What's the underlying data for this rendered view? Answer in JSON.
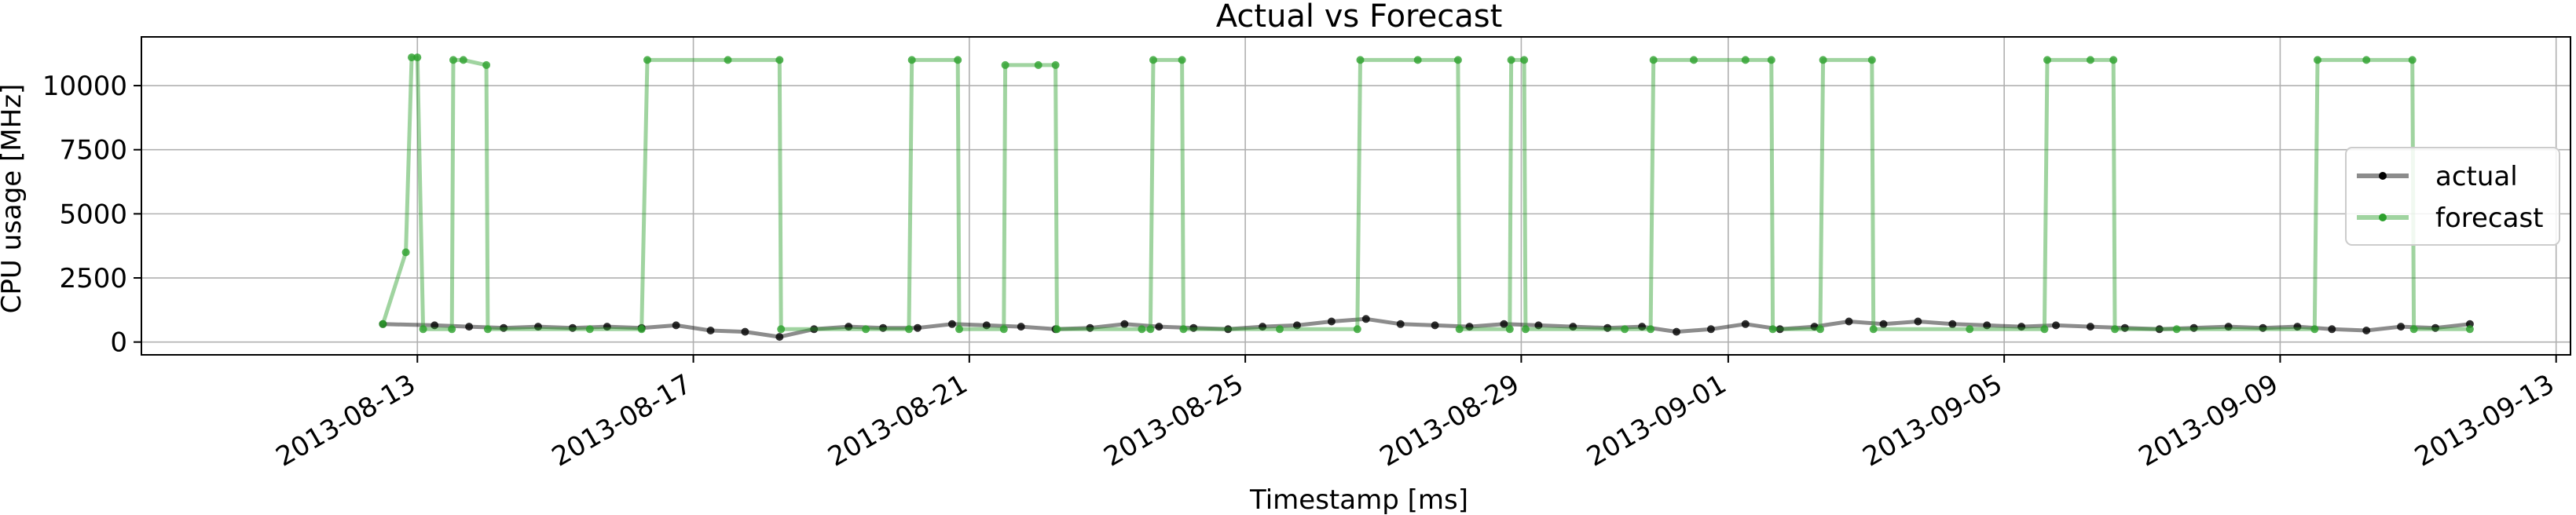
{
  "chart_data": {
    "type": "line",
    "title": "Actual vs Forecast",
    "xlabel": "Timestamp [ms]",
    "ylabel": "CPU usage [MHz]",
    "xlim": [
      "2013-08-09T00:00",
      "2013-09-13T05:00"
    ],
    "ylim": [
      -500,
      11900
    ],
    "x_ticks": [
      "2013-08-13",
      "2013-08-17",
      "2013-08-21",
      "2013-08-25",
      "2013-08-29",
      "2013-09-01",
      "2013-09-05",
      "2013-09-09",
      "2013-09-13"
    ],
    "y_ticks": [
      0,
      2500,
      5000,
      7500,
      10000
    ],
    "grid": true,
    "legend_position": "right",
    "series": [
      {
        "name": "actual",
        "color": "#000000",
        "points": [
          [
            "2013-08-12T12:00",
            700
          ],
          [
            "2013-08-13T06:00",
            650
          ],
          [
            "2013-08-13T18:00",
            600
          ],
          [
            "2013-08-14T06:00",
            550
          ],
          [
            "2013-08-14T18:00",
            600
          ],
          [
            "2013-08-15T06:00",
            550
          ],
          [
            "2013-08-15T18:00",
            600
          ],
          [
            "2013-08-16T06:00",
            550
          ],
          [
            "2013-08-16T18:00",
            650
          ],
          [
            "2013-08-17T06:00",
            450
          ],
          [
            "2013-08-17T18:00",
            400
          ],
          [
            "2013-08-18T06:00",
            200
          ],
          [
            "2013-08-18T18:00",
            500
          ],
          [
            "2013-08-19T06:00",
            600
          ],
          [
            "2013-08-19T18:00",
            550
          ],
          [
            "2013-08-20T06:00",
            550
          ],
          [
            "2013-08-20T18:00",
            700
          ],
          [
            "2013-08-21T06:00",
            650
          ],
          [
            "2013-08-21T18:00",
            600
          ],
          [
            "2013-08-22T06:00",
            500
          ],
          [
            "2013-08-22T18:00",
            550
          ],
          [
            "2013-08-23T06:00",
            700
          ],
          [
            "2013-08-23T18:00",
            600
          ],
          [
            "2013-08-24T06:00",
            550
          ],
          [
            "2013-08-24T18:00",
            500
          ],
          [
            "2013-08-25T06:00",
            600
          ],
          [
            "2013-08-25T18:00",
            650
          ],
          [
            "2013-08-26T06:00",
            800
          ],
          [
            "2013-08-26T18:00",
            900
          ],
          [
            "2013-08-27T06:00",
            700
          ],
          [
            "2013-08-27T18:00",
            650
          ],
          [
            "2013-08-28T06:00",
            600
          ],
          [
            "2013-08-28T18:00",
            700
          ],
          [
            "2013-08-29T06:00",
            650
          ],
          [
            "2013-08-29T18:00",
            600
          ],
          [
            "2013-08-30T06:00",
            550
          ],
          [
            "2013-08-30T18:00",
            600
          ],
          [
            "2013-08-31T06:00",
            400
          ],
          [
            "2013-08-31T18:00",
            500
          ],
          [
            "2013-09-01T06:00",
            700
          ],
          [
            "2013-09-01T18:00",
            500
          ],
          [
            "2013-09-02T06:00",
            600
          ],
          [
            "2013-09-02T18:00",
            800
          ],
          [
            "2013-09-03T06:00",
            700
          ],
          [
            "2013-09-03T18:00",
            800
          ],
          [
            "2013-09-04T06:00",
            700
          ],
          [
            "2013-09-04T18:00",
            650
          ],
          [
            "2013-09-05T06:00",
            600
          ],
          [
            "2013-09-05T18:00",
            650
          ],
          [
            "2013-09-06T06:00",
            600
          ],
          [
            "2013-09-06T18:00",
            550
          ],
          [
            "2013-09-07T06:00",
            500
          ],
          [
            "2013-09-07T18:00",
            550
          ],
          [
            "2013-09-08T06:00",
            600
          ],
          [
            "2013-09-08T18:00",
            550
          ],
          [
            "2013-09-09T06:00",
            600
          ],
          [
            "2013-09-09T18:00",
            500
          ],
          [
            "2013-09-10T06:00",
            450
          ],
          [
            "2013-09-10T18:00",
            600
          ],
          [
            "2013-09-11T06:00",
            550
          ],
          [
            "2013-09-11T18:00",
            700
          ]
        ]
      },
      {
        "name": "forecast",
        "color": "#2ca02c",
        "points": [
          [
            "2013-08-12T12:00",
            700
          ],
          [
            "2013-08-12T20:00",
            3500
          ],
          [
            "2013-08-12T22:00",
            11100
          ],
          [
            "2013-08-13T00:00",
            11100
          ],
          [
            "2013-08-13T02:00",
            500
          ],
          [
            "2013-08-13T12:00",
            500
          ],
          [
            "2013-08-13T12:30",
            11000
          ],
          [
            "2013-08-13T16:00",
            11000
          ],
          [
            "2013-08-14T00:00",
            10800
          ],
          [
            "2013-08-14T00:30",
            500
          ],
          [
            "2013-08-15T12:00",
            500
          ],
          [
            "2013-08-16T06:00",
            500
          ],
          [
            "2013-08-16T08:00",
            11000
          ],
          [
            "2013-08-17T12:00",
            11000
          ],
          [
            "2013-08-18T06:00",
            11000
          ],
          [
            "2013-08-18T06:30",
            500
          ],
          [
            "2013-08-19T12:00",
            500
          ],
          [
            "2013-08-20T03:00",
            500
          ],
          [
            "2013-08-20T04:00",
            11000
          ],
          [
            "2013-08-20T20:00",
            11000
          ],
          [
            "2013-08-20T20:30",
            500
          ],
          [
            "2013-08-21T12:00",
            500
          ],
          [
            "2013-08-21T12:30",
            10800
          ],
          [
            "2013-08-22T00:00",
            10800
          ],
          [
            "2013-08-22T06:00",
            10800
          ],
          [
            "2013-08-22T06:30",
            500
          ],
          [
            "2013-08-23T12:00",
            500
          ],
          [
            "2013-08-23T15:00",
            500
          ],
          [
            "2013-08-23T16:00",
            11000
          ],
          [
            "2013-08-24T02:00",
            11000
          ],
          [
            "2013-08-24T02:30",
            500
          ],
          [
            "2013-08-25T12:00",
            500
          ],
          [
            "2013-08-26T15:00",
            500
          ],
          [
            "2013-08-26T16:00",
            11000
          ],
          [
            "2013-08-27T12:00",
            11000
          ],
          [
            "2013-08-28T02:00",
            11000
          ],
          [
            "2013-08-28T02:30",
            500
          ],
          [
            "2013-08-28T20:00",
            500
          ],
          [
            "2013-08-28T20:30",
            11000
          ],
          [
            "2013-08-29T01:00",
            11000
          ],
          [
            "2013-08-29T01:30",
            500
          ],
          [
            "2013-08-30T12:00",
            500
          ],
          [
            "2013-08-30T21:00",
            500
          ],
          [
            "2013-08-30T22:00",
            11000
          ],
          [
            "2013-08-31T12:00",
            11000
          ],
          [
            "2013-09-01T06:00",
            11000
          ],
          [
            "2013-09-01T15:00",
            11000
          ],
          [
            "2013-09-01T15:30",
            500
          ],
          [
            "2013-09-02T08:00",
            500
          ],
          [
            "2013-09-02T09:00",
            11000
          ],
          [
            "2013-09-03T02:00",
            11000
          ],
          [
            "2013-09-03T02:30",
            500
          ],
          [
            "2013-09-04T12:00",
            500
          ],
          [
            "2013-09-05T14:00",
            500
          ],
          [
            "2013-09-05T15:00",
            11000
          ],
          [
            "2013-09-06T06:00",
            11000
          ],
          [
            "2013-09-06T14:00",
            11000
          ],
          [
            "2013-09-06T14:30",
            500
          ],
          [
            "2013-09-07T12:00",
            500
          ],
          [
            "2013-09-09T12:00",
            500
          ],
          [
            "2013-09-09T13:00",
            11000
          ],
          [
            "2013-09-10T06:00",
            11000
          ],
          [
            "2013-09-10T22:00",
            11000
          ],
          [
            "2013-09-10T22:30",
            500
          ],
          [
            "2013-09-11T18:00",
            500
          ]
        ]
      }
    ]
  }
}
